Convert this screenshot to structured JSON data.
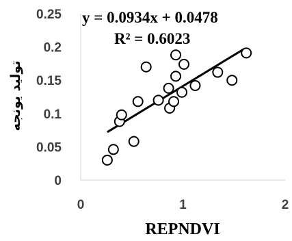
{
  "chart_data": {
    "type": "scatter",
    "xlabel": "REPNDVI",
    "ylabel": "تولید یونجه",
    "xlim": [
      0,
      2
    ],
    "ylim": [
      0,
      0.25
    ],
    "x_ticks": [
      "0",
      "1",
      "2"
    ],
    "y_ticks": [
      "0",
      "0.05",
      "0.1",
      "0.15",
      "0.2",
      "0.25"
    ],
    "grid": false,
    "points": [
      {
        "x": 0.26,
        "y": 0.03
      },
      {
        "x": 0.32,
        "y": 0.046
      },
      {
        "x": 0.38,
        "y": 0.088
      },
      {
        "x": 0.4,
        "y": 0.098
      },
      {
        "x": 0.52,
        "y": 0.058
      },
      {
        "x": 0.56,
        "y": 0.118
      },
      {
        "x": 0.64,
        "y": 0.17
      },
      {
        "x": 0.76,
        "y": 0.12
      },
      {
        "x": 0.86,
        "y": 0.138
      },
      {
        "x": 0.87,
        "y": 0.108
      },
      {
        "x": 0.91,
        "y": 0.118
      },
      {
        "x": 0.93,
        "y": 0.188
      },
      {
        "x": 0.93,
        "y": 0.156
      },
      {
        "x": 0.99,
        "y": 0.132
      },
      {
        "x": 1.01,
        "y": 0.174
      },
      {
        "x": 1.12,
        "y": 0.142
      },
      {
        "x": 1.34,
        "y": 0.162
      },
      {
        "x": 1.48,
        "y": 0.15
      },
      {
        "x": 1.62,
        "y": 0.191
      }
    ],
    "trendline": {
      "slope": 0.0934,
      "intercept": 0.0478,
      "x_range": [
        0.26,
        1.6
      ]
    },
    "equation_text": "y = 0.0934x + 0.0478",
    "r2_text": "R² = 0.6023"
  }
}
